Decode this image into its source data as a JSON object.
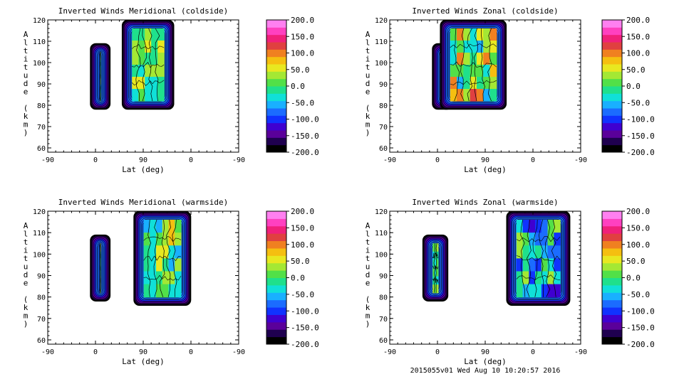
{
  "footer": "2015055v01 Wed Aug 10 10:20:57 2016",
  "colors": [
    "#000000",
    "#1f004f",
    "#5a009a",
    "#3f00d0",
    "#1032ff",
    "#1b6cff",
    "#19b0ff",
    "#10e0d8",
    "#1fe08c",
    "#52e048",
    "#a4e834",
    "#e8e820",
    "#f5bf10",
    "#f08020",
    "#e04040",
    "#f0207a",
    "#ff40c0",
    "#ff80f0"
  ],
  "chart_data": [
    {
      "type": "contour",
      "title": "Inverted Winds Meridional (coldside)",
      "xlabel": "Lat (deg)",
      "ylabel": "Altitude (km)",
      "xticks": [
        "-90",
        "0",
        "90",
        "0",
        "-90"
      ],
      "yticks": [
        "60",
        "70",
        "80",
        "90",
        "100",
        "110",
        "120"
      ],
      "ylim": [
        58,
        120
      ],
      "colorbar": {
        "ticks": [
          "200.0",
          "150.0",
          "100.0",
          "50.0",
          "0.0",
          "-50.0",
          "-100.0",
          "-150.0",
          "-200.0"
        ],
        "range": [
          -200,
          200
        ]
      },
      "patches": [
        {
          "name": "left-patch",
          "lat": [
            -10,
            28
          ],
          "alt": [
            78,
            109
          ],
          "level": [
            -20,
            40
          ]
        },
        {
          "name": "right-patch",
          "lat": [
            50,
            148
          ],
          "alt": [
            78,
            120
          ],
          "level": [
            -40,
            60
          ]
        }
      ]
    },
    {
      "type": "contour",
      "title": "Inverted Winds Zonal (coldside)",
      "xlabel": "Lat (deg)",
      "ylabel": "Altitude (km)",
      "xticks": [
        "-90",
        "0",
        "90",
        "0",
        "-90"
      ],
      "yticks": [
        "60",
        "70",
        "80",
        "90",
        "100",
        "110",
        "120"
      ],
      "ylim": [
        58,
        120
      ],
      "colorbar": {
        "ticks": [
          "200.0",
          "150.0",
          "100.0",
          "50.0",
          "0.0",
          "-50.0",
          "-100.0",
          "-150.0",
          "-200.0"
        ],
        "range": [
          -200,
          200
        ]
      },
      "patches": [
        {
          "name": "left-patch",
          "lat": [
            -10,
            28
          ],
          "alt": [
            78,
            109
          ],
          "level": [
            -10,
            60
          ]
        },
        {
          "name": "right-patch",
          "lat": [
            5,
            130
          ],
          "alt": [
            78,
            120
          ],
          "level": [
            -60,
            120
          ]
        }
      ]
    },
    {
      "type": "contour",
      "title": "Inverted Winds Meridional (warmside)",
      "xlabel": "Lat (deg)",
      "ylabel": "Altitude (km)",
      "xticks": [
        "-90",
        "0",
        "90",
        "0",
        "-90"
      ],
      "yticks": [
        "60",
        "70",
        "80",
        "90",
        "100",
        "110",
        "120"
      ],
      "ylim": [
        58,
        120
      ],
      "colorbar": {
        "ticks": [
          "200.0",
          "150.0",
          "100.0",
          "50.0",
          "0.0",
          "-50.0",
          "-100.0",
          "-150.0",
          "-200.0"
        ],
        "range": [
          -200,
          200
        ]
      },
      "patches": [
        {
          "name": "left-patch",
          "lat": [
            -10,
            28
          ],
          "alt": [
            78,
            109
          ],
          "level": [
            0,
            60
          ]
        },
        {
          "name": "right-patch",
          "lat": [
            72,
            180
          ],
          "alt": [
            76,
            120
          ],
          "level": [
            -60,
            70
          ]
        }
      ]
    },
    {
      "type": "contour",
      "title": "Inverted Winds Zonal (warmside)",
      "xlabel": "Lat (deg)",
      "ylabel": "Altitude (km)",
      "xticks": [
        "-90",
        "0",
        "90",
        "0",
        "-90"
      ],
      "yticks": [
        "60",
        "70",
        "80",
        "90",
        "100",
        "110",
        "120"
      ],
      "ylim": [
        58,
        120
      ],
      "colorbar": {
        "ticks": [
          "200.0",
          "150.0",
          "100.0",
          "50.0",
          "0.0",
          "-50.0",
          "-100.0",
          "-150.0",
          "-200.0"
        ],
        "range": [
          -200,
          200
        ]
      },
      "patches": [
        {
          "name": "left-patch",
          "lat": [
            -28,
            20
          ],
          "alt": [
            78,
            109
          ],
          "level": [
            -40,
            40
          ]
        },
        {
          "name": "right-patch",
          "lat": [
            130,
            250
          ],
          "alt": [
            76,
            120
          ],
          "level": [
            -120,
            40
          ]
        }
      ]
    }
  ]
}
